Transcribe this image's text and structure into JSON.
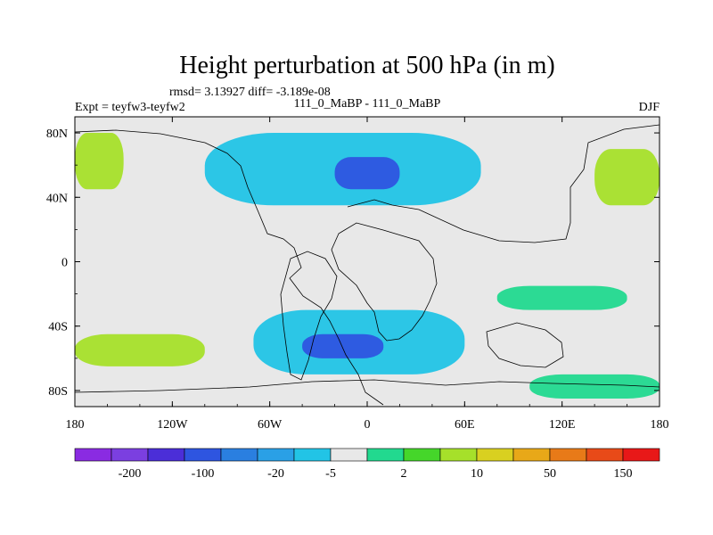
{
  "chart_data": {
    "type": "heatmap",
    "title": "Height perturbation at 500 hPa (in m)",
    "stats_text": "rmsd= 3.13927 diff= -3.189e-08",
    "left_label": "Expt = teyfw3-teyfw2",
    "center_label": "111_0_MaBP - 111_0_MaBP",
    "right_label": "DJF",
    "x_axis": {
      "range": [
        -180,
        180
      ],
      "ticks": [
        -180,
        -120,
        -60,
        0,
        60,
        120,
        180
      ],
      "tick_labels": [
        "180",
        "120W",
        "60W",
        "0",
        "60E",
        "120E",
        "180"
      ]
    },
    "y_axis": {
      "range": [
        -90,
        90
      ],
      "ticks": [
        80,
        40,
        0,
        -40,
        -80
      ],
      "tick_labels": [
        "80N",
        "40N",
        "0",
        "40S",
        "80S"
      ]
    },
    "colorbar": {
      "colors": [
        "#8a2be2",
        "#7b3fe0",
        "#4b2ed8",
        "#2e55e0",
        "#2a7fe0",
        "#2aa0e6",
        "#22c4e6",
        "#e8e8e8",
        "#22d98f",
        "#45d62a",
        "#a6e02a",
        "#d9d020",
        "#e8a818",
        "#e87a18",
        "#e84a18",
        "#e81818"
      ],
      "labels": [
        "-200",
        "-100",
        "-20",
        "-5",
        "2",
        "10",
        "50",
        "150"
      ]
    },
    "anomaly_regions": [
      {
        "level": "-5",
        "lon": [
          -100,
          70
        ],
        "lat": [
          35,
          80
        ]
      },
      {
        "level": "-20",
        "lon": [
          -20,
          20
        ],
        "lat": [
          45,
          65
        ]
      },
      {
        "level": "-5",
        "lon": [
          -70,
          60
        ],
        "lat": [
          -70,
          -30
        ]
      },
      {
        "level": "-20",
        "lon": [
          -40,
          10
        ],
        "lat": [
          -60,
          -45
        ]
      },
      {
        "level": "10",
        "lon": [
          140,
          180
        ],
        "lat": [
          35,
          70
        ]
      },
      {
        "level": "10",
        "lon": [
          -180,
          -150
        ],
        "lat": [
          45,
          80
        ]
      },
      {
        "level": "10",
        "lon": [
          -180,
          -100
        ],
        "lat": [
          -65,
          -45
        ]
      },
      {
        "level": "2",
        "lon": [
          100,
          180
        ],
        "lat": [
          -85,
          -70
        ]
      },
      {
        "level": "2",
        "lon": [
          80,
          160
        ],
        "lat": [
          -30,
          -15
        ]
      }
    ]
  }
}
